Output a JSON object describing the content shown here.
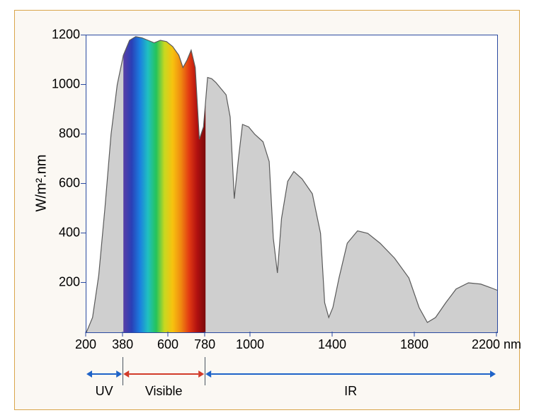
{
  "type": "area",
  "background_color": "#ffffff",
  "panel_background": "#fbf8f3",
  "panel_border_color": "#d9a54a",
  "plot_border_color": "#2a4aa0",
  "curve_fill_color": "#cfcfcf",
  "curve_stroke_color": "#5a5a5a",
  "visible_gradient_colors": [
    "#5a3fa6",
    "#2a3fb6",
    "#1b7de0",
    "#20c0c0",
    "#25c35a",
    "#c8d820",
    "#f7c20f",
    "#f08a10",
    "#e23a12",
    "#b01010",
    "#7a0a0a"
  ],
  "ylabel": "W/m².nm",
  "x_unit_suffix": "nm",
  "xlim": [
    200,
    2200
  ],
  "ylim": [
    0,
    1200
  ],
  "yticks": [
    200,
    400,
    600,
    800,
    1000,
    1200
  ],
  "xticks": [
    200,
    380,
    600,
    780,
    1000,
    1400,
    1800,
    2200
  ],
  "tick_fontsize": 18,
  "label_fontsize": 20,
  "curve_points": [
    [
      200,
      0
    ],
    [
      230,
      60
    ],
    [
      260,
      230
    ],
    [
      290,
      500
    ],
    [
      320,
      800
    ],
    [
      350,
      1000
    ],
    [
      380,
      1120
    ],
    [
      410,
      1180
    ],
    [
      440,
      1195
    ],
    [
      470,
      1190
    ],
    [
      500,
      1180
    ],
    [
      530,
      1170
    ],
    [
      560,
      1180
    ],
    [
      590,
      1175
    ],
    [
      620,
      1155
    ],
    [
      650,
      1120
    ],
    [
      670,
      1070
    ],
    [
      690,
      1100
    ],
    [
      710,
      1140
    ],
    [
      730,
      1070
    ],
    [
      750,
      780
    ],
    [
      770,
      830
    ],
    [
      790,
      1030
    ],
    [
      810,
      1025
    ],
    [
      830,
      1010
    ],
    [
      850,
      990
    ],
    [
      880,
      960
    ],
    [
      900,
      870
    ],
    [
      920,
      540
    ],
    [
      940,
      700
    ],
    [
      960,
      840
    ],
    [
      990,
      830
    ],
    [
      1020,
      800
    ],
    [
      1060,
      770
    ],
    [
      1090,
      690
    ],
    [
      1110,
      380
    ],
    [
      1130,
      240
    ],
    [
      1150,
      460
    ],
    [
      1180,
      610
    ],
    [
      1210,
      650
    ],
    [
      1250,
      620
    ],
    [
      1300,
      560
    ],
    [
      1340,
      400
    ],
    [
      1360,
      120
    ],
    [
      1380,
      60
    ],
    [
      1400,
      100
    ],
    [
      1430,
      220
    ],
    [
      1470,
      360
    ],
    [
      1520,
      410
    ],
    [
      1570,
      400
    ],
    [
      1630,
      360
    ],
    [
      1700,
      300
    ],
    [
      1770,
      220
    ],
    [
      1820,
      100
    ],
    [
      1860,
      40
    ],
    [
      1900,
      60
    ],
    [
      1950,
      120
    ],
    [
      2000,
      175
    ],
    [
      2060,
      200
    ],
    [
      2120,
      195
    ],
    [
      2170,
      180
    ],
    [
      2200,
      170
    ]
  ],
  "visible_band": [
    380,
    780
  ],
  "regions": [
    {
      "label": "UV",
      "from": 200,
      "to": 380,
      "arrow_color": "#1e63c8"
    },
    {
      "label": "Visible",
      "from": 380,
      "to": 780,
      "arrow_color": "#d23b2a"
    },
    {
      "label": "IR",
      "from": 780,
      "to": 2200,
      "arrow_color": "#1e63c8"
    }
  ],
  "region_divider_color": "#4a5560"
}
